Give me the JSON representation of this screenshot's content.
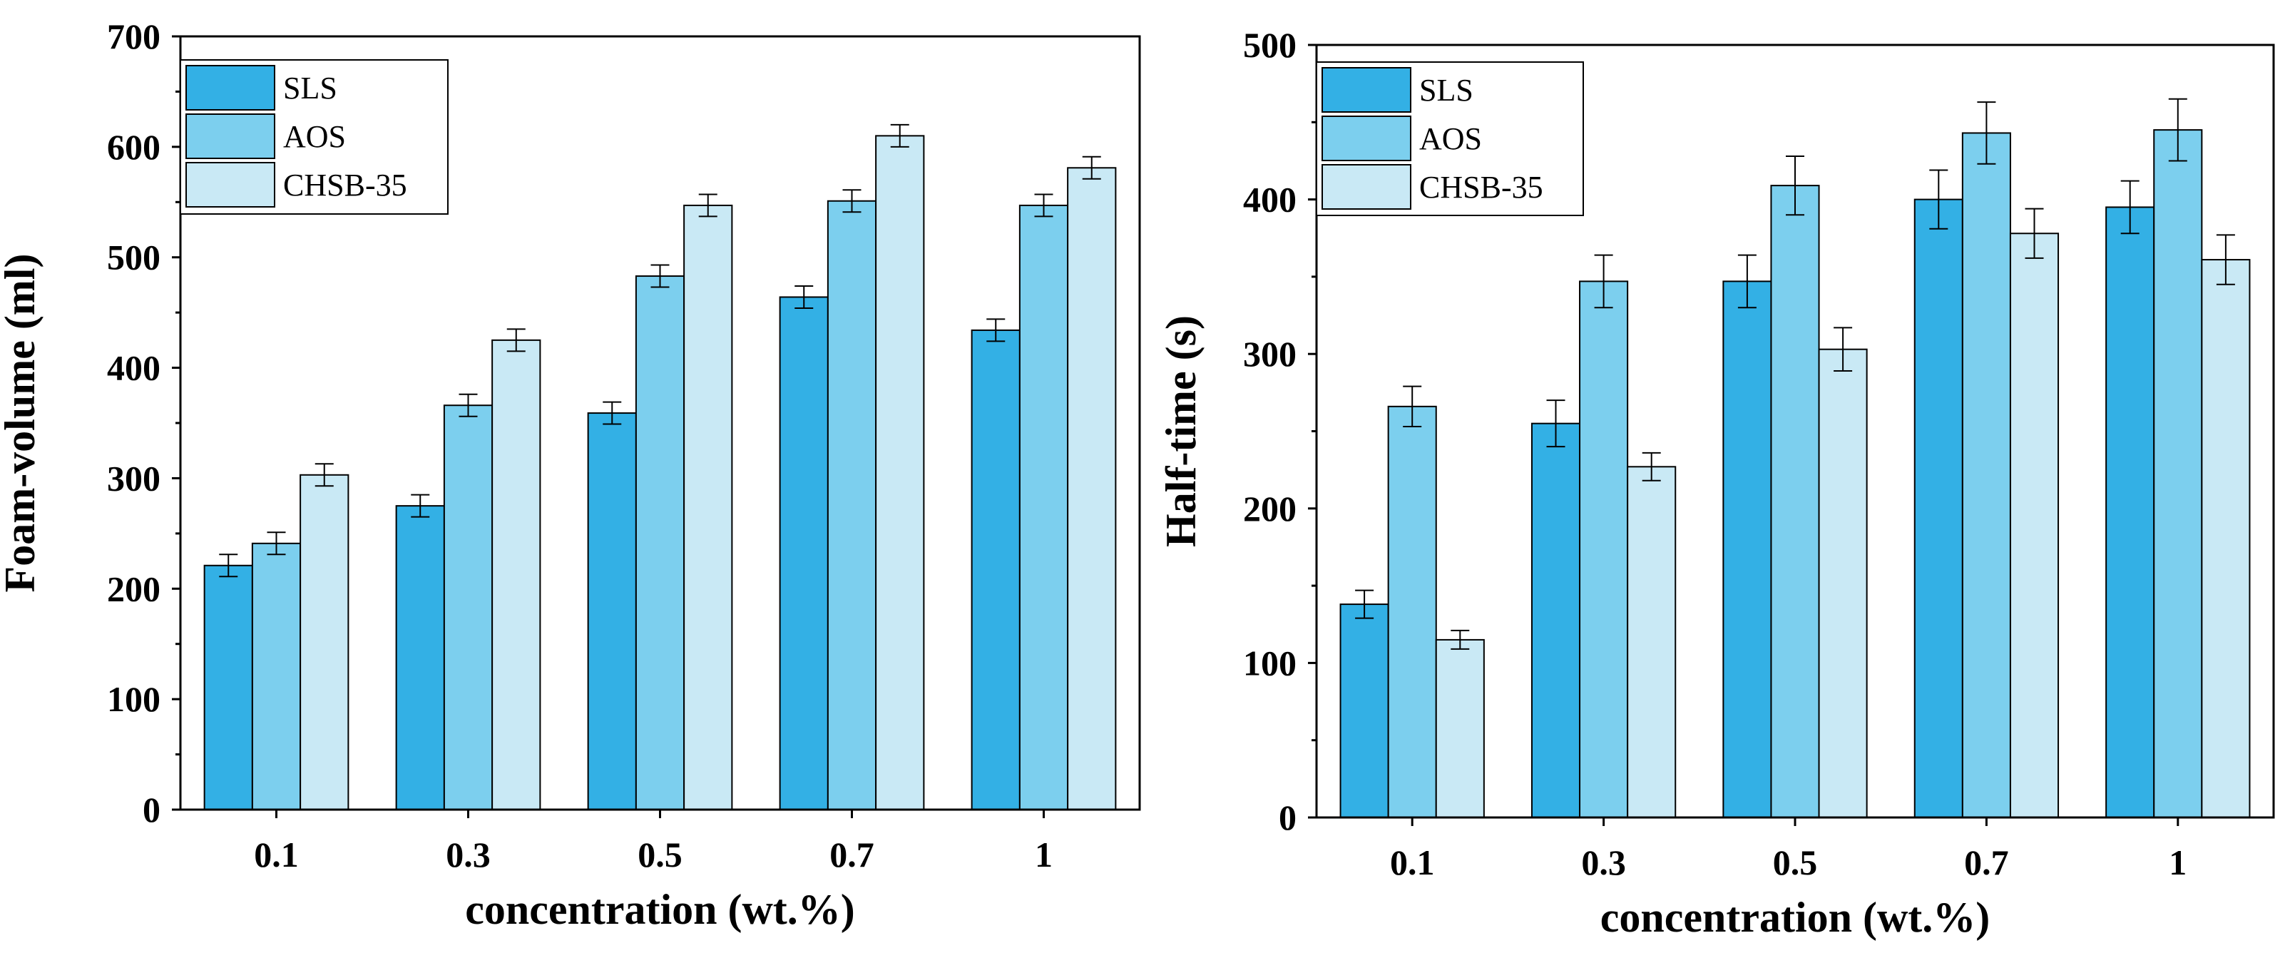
{
  "chart_data": [
    {
      "type": "bar",
      "title": "",
      "xlabel": "concentration (wt.%)",
      "ylabel": "Foam-volume (ml)",
      "categories": [
        "0.1",
        "0.3",
        "0.5",
        "0.7",
        "1"
      ],
      "ylim": [
        0,
        700
      ],
      "yticks": [
        "0",
        "100",
        "200",
        "300",
        "400",
        "500",
        "600",
        "700"
      ],
      "legend_position": "top-left",
      "series": [
        {
          "name": "SLS",
          "color": "#33b0e5",
          "values": [
            221,
            275,
            359,
            464,
            434
          ],
          "errors": [
            10,
            10,
            10,
            10,
            10
          ]
        },
        {
          "name": "AOS",
          "color": "#7ccfee",
          "values": [
            241,
            366,
            483,
            551,
            547
          ],
          "errors": [
            10,
            10,
            10,
            10,
            10
          ]
        },
        {
          "name": "CHSB-35",
          "color": "#c9e9f5",
          "values": [
            303,
            425,
            547,
            610,
            581
          ],
          "errors": [
            10,
            10,
            10,
            10,
            10
          ]
        }
      ]
    },
    {
      "type": "bar",
      "title": "",
      "xlabel": "concentration (wt.%)",
      "ylabel": "Half-time (s)",
      "categories": [
        "0.1",
        "0.3",
        "0.5",
        "0.7",
        "1"
      ],
      "ylim": [
        0,
        500
      ],
      "yticks": [
        "0",
        "100",
        "200",
        "300",
        "400",
        "500"
      ],
      "legend_position": "top-left",
      "series": [
        {
          "name": "SLS",
          "color": "#33b0e5",
          "values": [
            138,
            255,
            347,
            400,
            395
          ],
          "errors": [
            9,
            15,
            17,
            19,
            17
          ]
        },
        {
          "name": "AOS",
          "color": "#7ccfee",
          "values": [
            266,
            347,
            409,
            443,
            445
          ],
          "errors": [
            13,
            17,
            19,
            20,
            20
          ]
        },
        {
          "name": "CHSB-35",
          "color": "#c9e9f5",
          "values": [
            115,
            227,
            303,
            378,
            361
          ],
          "errors": [
            6,
            9,
            14,
            16,
            16
          ]
        }
      ]
    }
  ]
}
